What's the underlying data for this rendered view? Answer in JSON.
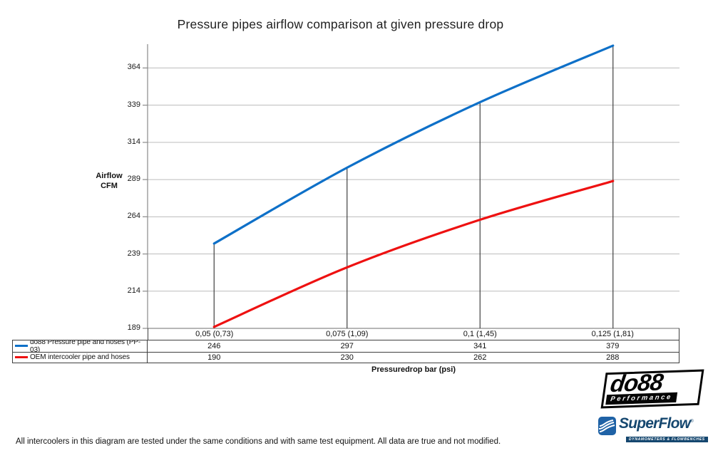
{
  "chart_data": {
    "type": "line",
    "title": "Pressure pipes airflow comparison at given pressure drop",
    "xlabel": "Pressuredrop bar (psi)",
    "ylabel": "Airflow CFM",
    "categories": [
      "0,05 (0,73)",
      "0,075 (1,09)",
      "0,1 (1,45)",
      "0,125 (1,81)"
    ],
    "series": [
      {
        "name": "do88 Pressure pipe and hoses (PP-03)",
        "values": [
          246,
          297,
          341,
          379
        ],
        "color": "#0e70c8"
      },
      {
        "name": "OEM intercooler pipe and hoses",
        "values": [
          190,
          230,
          262,
          288
        ],
        "color": "#ee1111"
      }
    ],
    "yticks": [
      189,
      214,
      239,
      264,
      289,
      314,
      339,
      364
    ],
    "ylim": [
      189,
      380
    ],
    "grid": true,
    "smooth": true,
    "legend_position": "table-left-of-values"
  },
  "footer": {
    "note": "All intercoolers in this diagram are tested under the same conditions and with same test equipment. All data are true and not modified."
  },
  "logos": {
    "do88": {
      "text": "do88",
      "tagline": "Performance"
    },
    "superflow": {
      "text": "SuperFlow",
      "mark": "®",
      "tagline": "DYNAMOMETERS & FLOWBENCHES"
    }
  },
  "colors": {
    "series_do88": "#0e70c8",
    "series_oem": "#ee1111",
    "gridline": "#bcbcbc",
    "axis": "#8a8a8a",
    "drop_line": "#3f3f3f",
    "table_border": "#3f3f3f"
  }
}
